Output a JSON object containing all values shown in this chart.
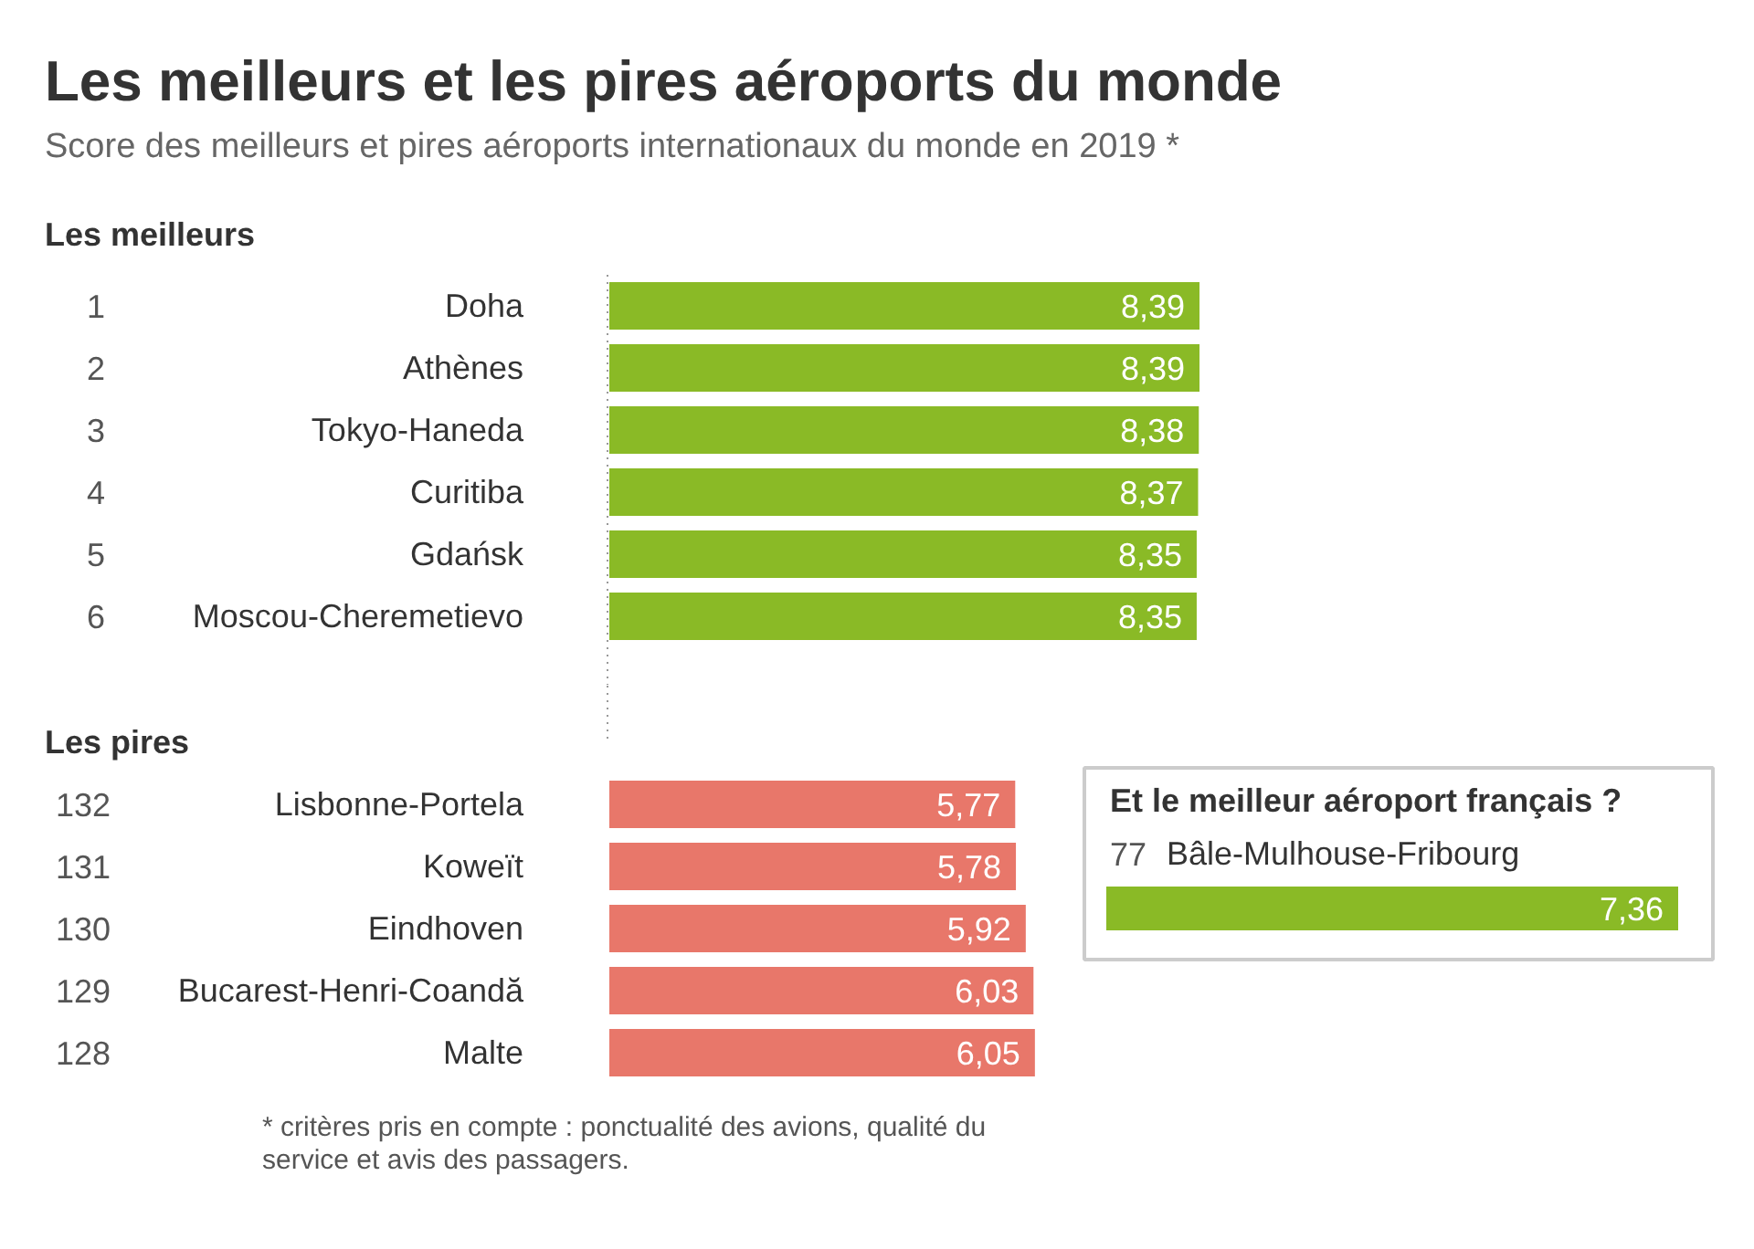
{
  "chart_data": [
    {
      "type": "bar",
      "orientation": "horizontal",
      "title": "Les meilleurs et les pires aéroports du monde",
      "subtitle": "Score des meilleurs et pires aéroports internationaux du monde en 2019 *",
      "categories": [
        "Doha",
        "Athènes",
        "Tokyo-Haneda",
        "Curitiba",
        "Gdańsk",
        "Moscou-Cheremetievo"
      ],
      "values": [
        8.39,
        8.39,
        8.38,
        8.37,
        8.35,
        8.35
      ],
      "color": "#8aba26",
      "value_labels": [
        "8,39",
        "8,39",
        "8,38",
        "8,37",
        "8,35",
        "8,35"
      ],
      "annotations": [
        "Les meilleurs",
        "1",
        "2",
        "3",
        "4",
        "5",
        "6"
      ]
    },
    {
      "type": "bar",
      "orientation": "horizontal",
      "title": "Les pires",
      "categories": [
        "Lisbonne-Portela",
        "Koweït",
        "Eindhoven",
        "Bucarest-Henri-Coandă",
        "Malte"
      ],
      "values": [
        5.77,
        5.78,
        5.92,
        6.03,
        6.05
      ],
      "color": "#e8776a",
      "value_labels": [
        "5,77",
        "5,78",
        "5,92",
        "6,03",
        "6,05"
      ],
      "annotations": [
        "132",
        "131",
        "130",
        "129",
        "128",
        "* critères pris en compte : ponctualité des avions, qualité du service et avis des passagers."
      ]
    },
    {
      "type": "bar",
      "orientation": "horizontal",
      "title": "Et le meilleur aéroport français ?",
      "categories": [
        "Bâle-Mulhouse-Fribourg"
      ],
      "values": [
        7.36
      ],
      "color": "#8aba26",
      "value_labels": [
        "7,36"
      ],
      "annotations": [
        "77"
      ]
    }
  ]
}
